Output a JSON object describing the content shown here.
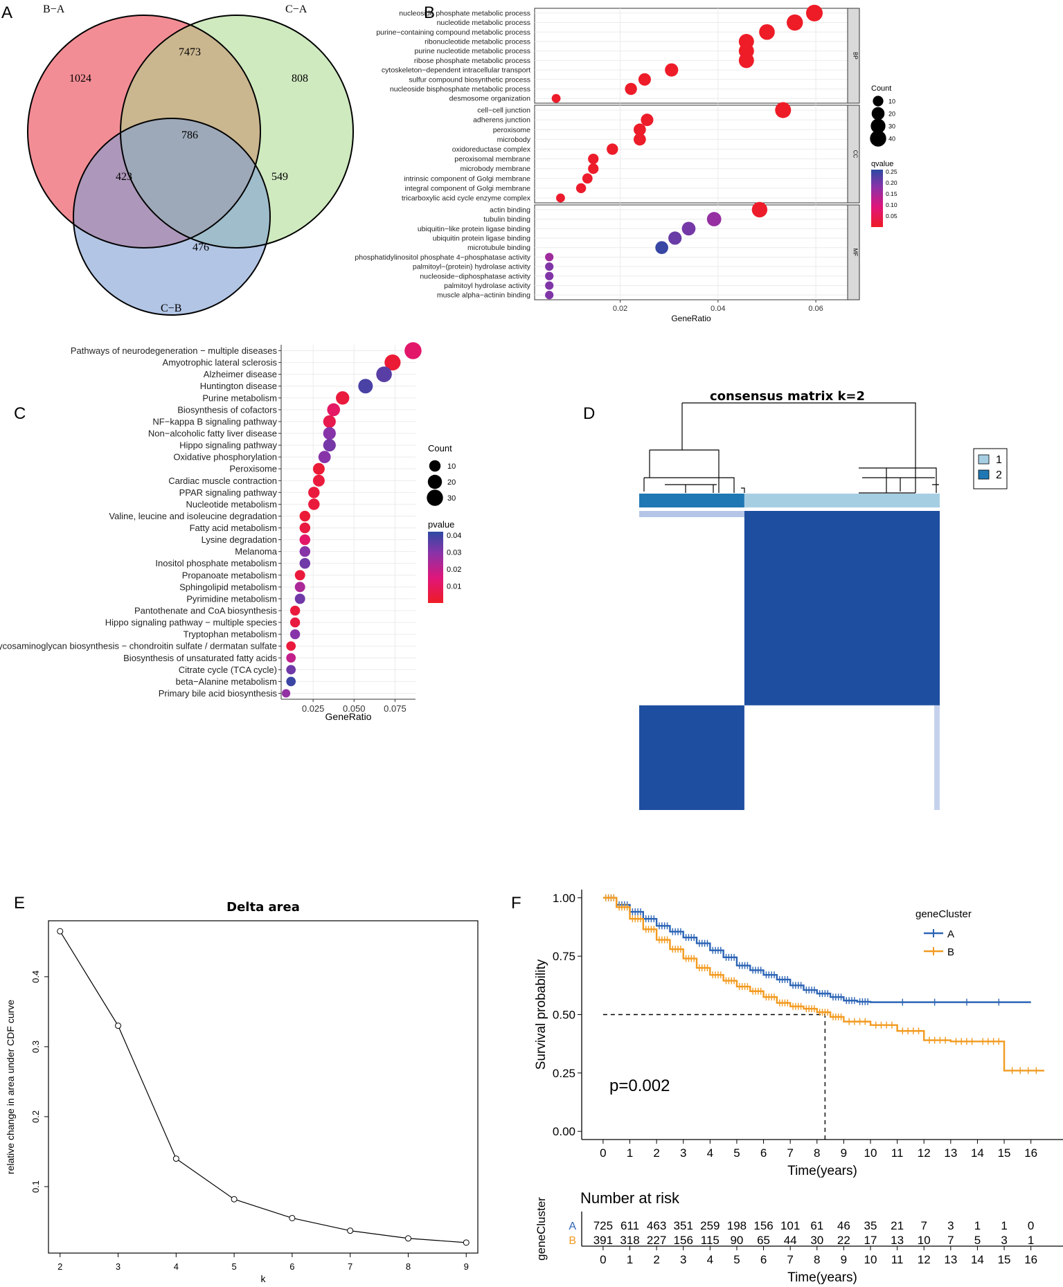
{
  "panels": {
    "A": "A",
    "B": "B",
    "C": "C",
    "D": "D",
    "E": "E",
    "F": "F"
  },
  "chart_data": [
    {
      "id": "A",
      "type": "venn",
      "sets": [
        "B−A",
        "C−A",
        "C−B"
      ],
      "colors": [
        "#f0707a",
        "#a8d88a",
        "#7f9fd4"
      ],
      "regions": {
        "only_BA": 1024,
        "only_CA": 808,
        "only_CB": 476,
        "BA_CA": 7473,
        "BA_CB": 423,
        "CA_CB": 549,
        "all": 786
      }
    },
    {
      "id": "B",
      "type": "scatter",
      "title": "",
      "xlabel": "GeneRatio",
      "xticks": [
        "0.02",
        "0.04",
        "0.06"
      ],
      "xlim": [
        0.0025,
        0.0665
      ],
      "size_legend": {
        "title": "Count",
        "values": [
          10,
          20,
          30,
          40
        ]
      },
      "color_legend": {
        "title": "qvalue",
        "ticks": [
          "0.25",
          "0.20",
          "0.15",
          "0.10",
          "0.05"
        ],
        "min": 0.0,
        "max": 0.26
      },
      "facets": [
        {
          "name": "BP",
          "terms": [
            {
              "term": "nucleoside phosphate metabolic process",
              "ratio": 0.0597,
              "count": 43,
              "q": 0.001
            },
            {
              "term": "nucleotide metabolic process",
              "ratio": 0.0557,
              "count": 40,
              "q": 0.001
            },
            {
              "term": "purine−containing compound metabolic process",
              "ratio": 0.05,
              "count": 36,
              "q": 0.002
            },
            {
              "term": "ribonucleotide metabolic process",
              "ratio": 0.0458,
              "count": 33,
              "q": 0.002
            },
            {
              "term": "purine nucleotide metabolic process",
              "ratio": 0.0458,
              "count": 33,
              "q": 0.002
            },
            {
              "term": "ribose phosphate metabolic process",
              "ratio": 0.0458,
              "count": 33,
              "q": 0.002
            },
            {
              "term": "cytoskeleton−dependent intracellular transport",
              "ratio": 0.0305,
              "count": 22,
              "q": 0.003
            },
            {
              "term": "sulfur compound biosynthetic process",
              "ratio": 0.025,
              "count": 18,
              "q": 0.003
            },
            {
              "term": "nucleoside bisphosphate metabolic process",
              "ratio": 0.0222,
              "count": 16,
              "q": 0.004
            },
            {
              "term": "desmosome organization",
              "ratio": 0.0069,
              "count": 5,
              "q": 0.005
            }
          ]
        },
        {
          "name": "CC",
          "terms": [
            {
              "term": "cell−cell junction",
              "ratio": 0.0533,
              "count": 38,
              "q": 0.002
            },
            {
              "term": "adherens junction",
              "ratio": 0.0255,
              "count": 18,
              "q": 0.004
            },
            {
              "term": "peroxisome",
              "ratio": 0.024,
              "count": 17,
              "q": 0.004
            },
            {
              "term": "microbody",
              "ratio": 0.024,
              "count": 17,
              "q": 0.004
            },
            {
              "term": "oxidoreductase complex",
              "ratio": 0.0184,
              "count": 13,
              "q": 0.005
            },
            {
              "term": "peroxisomal membrane",
              "ratio": 0.0145,
              "count": 10,
              "q": 0.006
            },
            {
              "term": "microbody membrane",
              "ratio": 0.0145,
              "count": 10,
              "q": 0.006
            },
            {
              "term": "intrinsic component of Golgi membrane",
              "ratio": 0.0133,
              "count": 9,
              "q": 0.007
            },
            {
              "term": "integral component of Golgi membrane",
              "ratio": 0.012,
              "count": 8,
              "q": 0.008
            },
            {
              "term": "tricarboxylic acid cycle enzyme complex",
              "ratio": 0.0078,
              "count": 5,
              "q": 0.009
            }
          ]
        },
        {
          "name": "MF",
          "terms": [
            {
              "term": "actin binding",
              "ratio": 0.0485,
              "count": 35,
              "q": 0.005
            },
            {
              "term": "tubulin binding",
              "ratio": 0.0392,
              "count": 28,
              "q": 0.17
            },
            {
              "term": "ubiquitin−like protein ligase binding",
              "ratio": 0.034,
              "count": 24,
              "q": 0.2
            },
            {
              "term": "ubiquitin protein ligase binding",
              "ratio": 0.0312,
              "count": 22,
              "q": 0.21
            },
            {
              "term": "microtubule binding",
              "ratio": 0.0285,
              "count": 20,
              "q": 0.25
            },
            {
              "term": "phosphatidylinositol phosphate 4−phosphatase activity",
              "ratio": 0.0055,
              "count": 4,
              "q": 0.16
            },
            {
              "term": "palmitoyl−(protein) hydrolase activity",
              "ratio": 0.0055,
              "count": 4,
              "q": 0.19
            },
            {
              "term": "nucleoside−diphosphatase activity",
              "ratio": 0.0055,
              "count": 4,
              "q": 0.19
            },
            {
              "term": "palmitoyl hydrolase activity",
              "ratio": 0.0055,
              "count": 4,
              "q": 0.19
            },
            {
              "term": "muscle alpha−actinin binding",
              "ratio": 0.0055,
              "count": 4,
              "q": 0.19
            }
          ]
        }
      ]
    },
    {
      "id": "C",
      "type": "scatter",
      "xlabel": "GeneRatio",
      "xticks": [
        "0.025",
        "0.050",
        "0.075"
      ],
      "xlim": [
        0.0055,
        0.0875
      ],
      "size_legend": {
        "title": "Count",
        "values": [
          10,
          20,
          30
        ]
      },
      "color_legend": {
        "title": "pvalue",
        "ticks": [
          "0.04",
          "0.03",
          "0.02",
          "0.01"
        ],
        "min": 0.0,
        "max": 0.042
      },
      "terms": [
        {
          "term": "Pathways of neurodegeneration − multiple diseases",
          "ratio": 0.086,
          "count": 34,
          "p": 0.012
        },
        {
          "term": "Amyotrophic lateral sclerosis",
          "ratio": 0.0735,
          "count": 29,
          "p": 0.003
        },
        {
          "term": "Alzheimer disease",
          "ratio": 0.0683,
          "count": 27,
          "p": 0.036
        },
        {
          "term": "Huntington disease",
          "ratio": 0.057,
          "count": 22,
          "p": 0.038
        },
        {
          "term": "Purine metabolism",
          "ratio": 0.043,
          "count": 17,
          "p": 0.004
        },
        {
          "term": "Biosynthesis of cofactors",
          "ratio": 0.0375,
          "count": 15,
          "p": 0.011
        },
        {
          "term": "NF−kappa B signaling pathway",
          "ratio": 0.035,
          "count": 14,
          "p": 0.007
        },
        {
          "term": "Non−alcoholic fatty liver disease",
          "ratio": 0.035,
          "count": 14,
          "p": 0.03
        },
        {
          "term": "Hippo signaling pathway",
          "ratio": 0.035,
          "count": 14,
          "p": 0.032
        },
        {
          "term": "Oxidative phosphorylation",
          "ratio": 0.032,
          "count": 13,
          "p": 0.03
        },
        {
          "term": "Peroxisome",
          "ratio": 0.0285,
          "count": 11,
          "p": 0.003
        },
        {
          "term": "Cardiac muscle contraction",
          "ratio": 0.0285,
          "count": 11,
          "p": 0.004
        },
        {
          "term": "PPAR signaling pathway",
          "ratio": 0.0255,
          "count": 10,
          "p": 0.004
        },
        {
          "term": "Nucleotide metabolism",
          "ratio": 0.0255,
          "count": 10,
          "p": 0.004
        },
        {
          "term": "Valine, leucine and isoleucine degradation",
          "ratio": 0.02,
          "count": 8,
          "p": 0.003
        },
        {
          "term": "Fatty acid metabolism",
          "ratio": 0.02,
          "count": 8,
          "p": 0.005
        },
        {
          "term": "Lysine degradation",
          "ratio": 0.02,
          "count": 8,
          "p": 0.012
        },
        {
          "term": "Melanoma",
          "ratio": 0.02,
          "count": 8,
          "p": 0.03
        },
        {
          "term": "Inositol phosphate metabolism",
          "ratio": 0.02,
          "count": 8,
          "p": 0.033
        },
        {
          "term": "Propanoate metabolism",
          "ratio": 0.017,
          "count": 7,
          "p": 0.004
        },
        {
          "term": "Sphingolipid metabolism",
          "ratio": 0.017,
          "count": 7,
          "p": 0.024
        },
        {
          "term": "Pyrimidine metabolism",
          "ratio": 0.017,
          "count": 7,
          "p": 0.033
        },
        {
          "term": "Pantothenate and CoA biosynthesis",
          "ratio": 0.014,
          "count": 6,
          "p": 0.004
        },
        {
          "term": "Hippo signaling pathway − multiple species",
          "ratio": 0.014,
          "count": 6,
          "p": 0.005
        },
        {
          "term": "Tryptophan metabolism",
          "ratio": 0.014,
          "count": 6,
          "p": 0.03
        },
        {
          "term": "Glycosaminoglycan biosynthesis − chondroitin sulfate / dermatan sulfate",
          "ratio": 0.0115,
          "count": 5,
          "p": 0.004
        },
        {
          "term": "Biosynthesis of unsaturated fatty acids",
          "ratio": 0.0115,
          "count": 5,
          "p": 0.02
        },
        {
          "term": "Citrate cycle (TCA cycle)",
          "ratio": 0.0115,
          "count": 5,
          "p": 0.033
        },
        {
          "term": "beta−Alanine metabolism",
          "ratio": 0.0115,
          "count": 5,
          "p": 0.04
        },
        {
          "term": "Primary bile acid biosynthesis",
          "ratio": 0.0085,
          "count": 3,
          "p": 0.028
        }
      ]
    },
    {
      "id": "D",
      "type": "heatmap",
      "title": "consensus matrix k=2",
      "legend": [
        {
          "label": "1",
          "color": "#a6cee3"
        },
        {
          "label": "2",
          "color": "#1f78b4"
        }
      ],
      "cluster_fraction": [
        0.35,
        0.65
      ],
      "fill_color": "#1e4ea0"
    },
    {
      "id": "E",
      "type": "line",
      "title": "Delta area",
      "xlabel": "k",
      "ylabel": "relative change in area under CDF curve",
      "x": [
        2,
        3,
        4,
        5,
        6,
        7,
        8,
        9
      ],
      "y": [
        0.465,
        0.33,
        0.14,
        0.082,
        0.055,
        0.037,
        0.026,
        0.02
      ],
      "xticks": [
        "2",
        "3",
        "4",
        "5",
        "6",
        "7",
        "8",
        "9"
      ],
      "yticks": [
        "0.1",
        "0.2",
        "0.3",
        "0.4"
      ],
      "xlim": [
        1.8,
        9.2
      ],
      "ylim": [
        0.005,
        0.48
      ]
    },
    {
      "id": "F",
      "type": "line",
      "subtype": "kaplan-meier",
      "xlabel": "Time(years)",
      "ylabel": "Survival probability",
      "annotation": "p=0.002",
      "legend_title": "geneCluster",
      "xlim": [
        -0.8,
        17.2
      ],
      "ylim": [
        -0.035,
        1.035
      ],
      "xticks": [
        "0",
        "1",
        "2",
        "3",
        "4",
        "5",
        "6",
        "7",
        "8",
        "9",
        "10",
        "11",
        "12",
        "13",
        "14",
        "15",
        "16"
      ],
      "yticks": [
        "1.00",
        "0.75",
        "0.50",
        "0.25",
        "0.00"
      ],
      "median_B": 8.3,
      "series": [
        {
          "name": "A",
          "color": "#2c64b5",
          "x": [
            0,
            0.5,
            1,
            1.5,
            2,
            2.5,
            3,
            3.5,
            4,
            4.5,
            5,
            5.5,
            6,
            6.5,
            7,
            7.5,
            8,
            8.5,
            9,
            9.5,
            10,
            16,
            15.8
          ],
          "y": [
            1.0,
            0.97,
            0.94,
            0.91,
            0.88,
            0.855,
            0.83,
            0.805,
            0.775,
            0.745,
            0.71,
            0.69,
            0.67,
            0.65,
            0.625,
            0.605,
            0.59,
            0.575,
            0.56,
            0.555,
            0.553,
            0.553,
            0.553
          ]
        },
        {
          "name": "B",
          "color": "#f29a1f",
          "x": [
            0,
            0.5,
            1,
            1.5,
            2,
            2.5,
            3,
            3.5,
            4,
            4.5,
            5,
            5.5,
            6,
            6.5,
            7,
            7.5,
            8,
            8.5,
            9,
            10,
            11,
            12,
            13,
            14,
            15,
            16.5
          ],
          "y": [
            1.0,
            0.96,
            0.91,
            0.865,
            0.82,
            0.78,
            0.74,
            0.7,
            0.67,
            0.645,
            0.62,
            0.6,
            0.575,
            0.55,
            0.535,
            0.525,
            0.51,
            0.49,
            0.47,
            0.455,
            0.43,
            0.39,
            0.385,
            0.385,
            0.26,
            0.26
          ]
        }
      ],
      "risk_table": {
        "title": "Number at risk",
        "ylabel": "geneCluster",
        "xlabel": "Time(years)",
        "rows": [
          {
            "name": "A",
            "values": [
              "725",
              "611",
              "463",
              "351",
              "259",
              "198",
              "156",
              "101",
              "61",
              "46",
              "35",
              "21",
              "7",
              "3",
              "1",
              "1",
              "0"
            ]
          },
          {
            "name": "B",
            "values": [
              "391",
              "318",
              "227",
              "156",
              "115",
              "90",
              "65",
              "44",
              "30",
              "22",
              "17",
              "13",
              "10",
              "7",
              "5",
              "3",
              "1"
            ]
          }
        ]
      }
    }
  ]
}
